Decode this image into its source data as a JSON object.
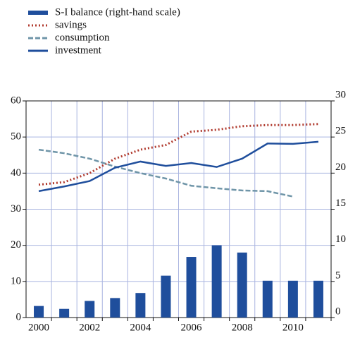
{
  "chart_data": {
    "type": "bar-line",
    "categories": [
      "2000",
      null,
      "2002",
      null,
      "2004",
      null,
      "2006",
      null,
      "2008",
      null,
      "2010",
      null
    ],
    "series": [
      {
        "name": "S-I balance (right-hand scale)",
        "type": "bar",
        "axis": "y2",
        "color": "#1f4e9c",
        "values": [
          1.6,
          1.2,
          2.3,
          2.7,
          3.4,
          5.8,
          8.4,
          10,
          9,
          5.1,
          5.1,
          5.1
        ]
      },
      {
        "name": "savings",
        "type": "line",
        "style": "dotted",
        "color": "#b03a2e",
        "values": [
          36.8,
          37.5,
          40,
          44,
          46.5,
          47.8,
          51.5,
          52,
          53,
          53.3,
          53.3,
          53.6
        ]
      },
      {
        "name": "consumption",
        "type": "line",
        "style": "dashed",
        "color": "#6f95a8",
        "values": [
          46.5,
          45.5,
          44,
          41.8,
          40,
          38.5,
          36.5,
          35.8,
          35.2,
          35,
          33.5,
          null
        ]
      },
      {
        "name": "investment",
        "type": "line",
        "style": "solid",
        "color": "#1f4e9c",
        "values": [
          35,
          36.3,
          37.8,
          41.5,
          43.2,
          42,
          42.8,
          41.7,
          44,
          48.2,
          48.1,
          48.7
        ]
      }
    ],
    "ylim": [
      0,
      60
    ],
    "yticks": [
      0,
      10,
      20,
      30,
      40,
      50,
      60
    ],
    "y2lim": [
      0,
      30
    ],
    "y2ticks": [
      0,
      5,
      10,
      15,
      20,
      25,
      30
    ],
    "grid": true
  }
}
